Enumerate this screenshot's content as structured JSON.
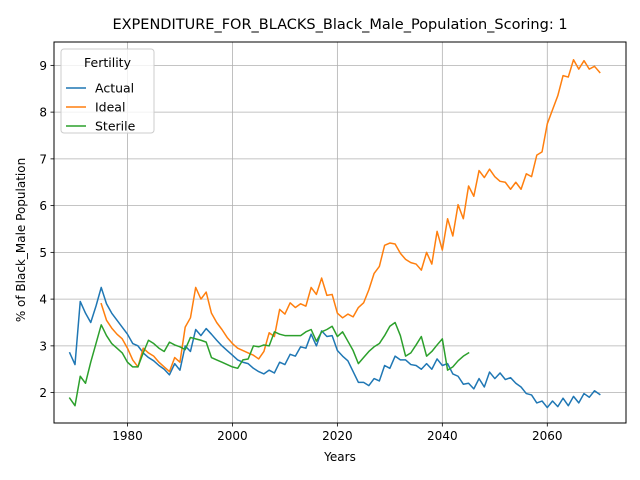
{
  "chart_data": {
    "type": "line",
    "title": "EXPENDITURE_FOR_BLACKS_Black_Male_Population_Scoring: 1",
    "xlabel": "Years",
    "ylabel": "% of Black_Male Population",
    "xlim": [
      1966,
      2075
    ],
    "ylim": [
      1.35,
      9.5
    ],
    "xticks": [
      1980,
      2000,
      2020,
      2040,
      2060
    ],
    "yticks": [
      2,
      3,
      4,
      5,
      6,
      7,
      8,
      9
    ],
    "grid": true,
    "legend": {
      "title": "Fertility",
      "placement": "top-left"
    },
    "series": [
      {
        "name": "Actual",
        "color": "#1f77b4",
        "x": [
          1969,
          1970,
          1971,
          1972,
          1973,
          1974,
          1975,
          1976,
          1977,
          1978,
          1979,
          1980,
          1981,
          1982,
          1983,
          1984,
          1985,
          1986,
          1987,
          1988,
          1989,
          1990,
          1991,
          1992,
          1993,
          1994,
          1995,
          1996,
          1997,
          1998,
          1999,
          2000,
          2001,
          2002,
          2003,
          2004,
          2005,
          2006,
          2007,
          2008,
          2009,
          2010,
          2011,
          2012,
          2013,
          2014,
          2015,
          2016,
          2017,
          2018,
          2019,
          2020,
          2021,
          2022,
          2023,
          2024,
          2025,
          2026,
          2027,
          2028,
          2029,
          2030,
          2031,
          2032,
          2033,
          2034,
          2035,
          2036,
          2037,
          2038,
          2039,
          2040,
          2041,
          2042,
          2043,
          2044,
          2045,
          2046,
          2047,
          2048,
          2049,
          2050,
          2051,
          2052,
          2053,
          2054,
          2055,
          2056,
          2057,
          2058,
          2059,
          2060,
          2061,
          2062,
          2063,
          2064,
          2065,
          2066,
          2067,
          2068,
          2069,
          2070
        ],
        "y": [
          2.85,
          2.6,
          3.95,
          3.7,
          3.5,
          3.85,
          4.25,
          3.9,
          3.7,
          3.55,
          3.4,
          3.25,
          3.05,
          3.0,
          2.85,
          2.75,
          2.68,
          2.58,
          2.5,
          2.38,
          2.62,
          2.48,
          3.0,
          2.88,
          3.35,
          3.22,
          3.37,
          3.25,
          3.12,
          3.0,
          2.9,
          2.8,
          2.7,
          2.65,
          2.62,
          2.52,
          2.45,
          2.4,
          2.48,
          2.42,
          2.65,
          2.6,
          2.82,
          2.78,
          2.98,
          2.95,
          3.25,
          3.0,
          3.32,
          3.2,
          3.22,
          2.9,
          2.78,
          2.68,
          2.45,
          2.22,
          2.22,
          2.15,
          2.3,
          2.25,
          2.58,
          2.52,
          2.78,
          2.7,
          2.7,
          2.6,
          2.58,
          2.5,
          2.62,
          2.5,
          2.72,
          2.58,
          2.62,
          2.4,
          2.35,
          2.18,
          2.2,
          2.08,
          2.3,
          2.12,
          2.44,
          2.3,
          2.42,
          2.28,
          2.32,
          2.2,
          2.12,
          1.98,
          1.95,
          1.78,
          1.82,
          1.68,
          1.82,
          1.7,
          1.88,
          1.72,
          1.92,
          1.78,
          1.98,
          1.9,
          2.04,
          1.96
        ]
      },
      {
        "name": "Ideal",
        "color": "#ff7f0e",
        "x": [
          1975,
          1976,
          1977,
          1978,
          1979,
          1980,
          1981,
          1982,
          1983,
          1984,
          1985,
          1986,
          1987,
          1988,
          1989,
          1990,
          1991,
          1992,
          1993,
          1994,
          1995,
          1996,
          1997,
          1998,
          1999,
          2000,
          2001,
          2002,
          2003,
          2004,
          2005,
          2006,
          2007,
          2008,
          2009,
          2010,
          2011,
          2012,
          2013,
          2014,
          2015,
          2016,
          2017,
          2018,
          2019,
          2020,
          2021,
          2022,
          2023,
          2024,
          2025,
          2026,
          2027,
          2028,
          2029,
          2030,
          2031,
          2032,
          2033,
          2034,
          2035,
          2036,
          2037,
          2038,
          2039,
          2040,
          2041,
          2042,
          2043,
          2044,
          2045,
          2046,
          2047,
          2048,
          2049,
          2050,
          2051,
          2052,
          2053,
          2054,
          2055,
          2056,
          2057,
          2058,
          2059,
          2060,
          2061,
          2062,
          2063,
          2064,
          2065,
          2066,
          2067,
          2068,
          2069,
          2070
        ],
        "y": [
          3.9,
          3.55,
          3.38,
          3.25,
          3.15,
          2.95,
          2.7,
          2.55,
          2.95,
          2.85,
          2.78,
          2.65,
          2.55,
          2.45,
          2.75,
          2.65,
          3.4,
          3.6,
          4.25,
          4.0,
          4.15,
          3.7,
          3.5,
          3.35,
          3.18,
          3.05,
          2.95,
          2.9,
          2.85,
          2.8,
          2.72,
          2.88,
          3.28,
          3.2,
          3.78,
          3.68,
          3.92,
          3.82,
          3.9,
          3.85,
          4.25,
          4.1,
          4.45,
          4.08,
          4.1,
          3.7,
          3.6,
          3.68,
          3.62,
          3.82,
          3.92,
          4.2,
          4.55,
          4.7,
          5.15,
          5.2,
          5.18,
          4.98,
          4.85,
          4.78,
          4.75,
          4.62,
          5.0,
          4.75,
          5.45,
          5.05,
          5.72,
          5.35,
          6.02,
          5.72,
          6.42,
          6.2,
          6.75,
          6.6,
          6.78,
          6.62,
          6.52,
          6.5,
          6.35,
          6.5,
          6.35,
          6.68,
          6.62,
          7.08,
          7.15,
          7.75,
          8.05,
          8.35,
          8.78,
          8.75,
          9.12,
          8.92,
          9.1,
          8.92,
          8.98,
          8.85
        ]
      },
      {
        "name": "Sterile",
        "color": "#2ca02c",
        "x": [
          1969,
          1970,
          1971,
          1972,
          1973,
          1974,
          1975,
          1976,
          1977,
          1978,
          1979,
          1980,
          1981,
          1982,
          1983,
          1984,
          1985,
          1986,
          1987,
          1988,
          1989,
          1990,
          1991,
          1992,
          1993,
          1994,
          1995,
          1996,
          1997,
          1998,
          1999,
          2000,
          2001,
          2002,
          2003,
          2004,
          2005,
          2006,
          2007,
          2008,
          2009,
          2010,
          2011,
          2012,
          2013,
          2014,
          2015,
          2016,
          2017,
          2018,
          2019,
          2020,
          2021,
          2022,
          2023,
          2024,
          2025,
          2026,
          2027,
          2028,
          2029,
          2030,
          2031,
          2032,
          2033,
          2034,
          2035,
          2036,
          2037,
          2038,
          2039,
          2040,
          2041,
          2042,
          2043,
          2044,
          2045
        ],
        "y": [
          1.88,
          1.72,
          2.35,
          2.2,
          2.65,
          3.05,
          3.45,
          3.22,
          3.05,
          2.95,
          2.85,
          2.65,
          2.55,
          2.55,
          2.85,
          3.12,
          3.05,
          2.95,
          2.88,
          3.08,
          3.02,
          2.98,
          2.92,
          3.18,
          3.15,
          3.12,
          3.08,
          2.75,
          2.7,
          2.65,
          2.6,
          2.55,
          2.52,
          2.7,
          2.72,
          3.0,
          2.98,
          3.02,
          3.0,
          3.3,
          3.25,
          3.22,
          3.22,
          3.22,
          3.22,
          3.3,
          3.35,
          3.1,
          3.3,
          3.35,
          3.42,
          3.2,
          3.3,
          3.1,
          2.9,
          2.62,
          2.75,
          2.88,
          2.98,
          3.05,
          3.22,
          3.42,
          3.5,
          3.22,
          2.78,
          2.85,
          3.02,
          3.2,
          2.78,
          2.88,
          3.02,
          3.15,
          2.48,
          2.55,
          2.68,
          2.78,
          2.85
        ]
      }
    ]
  }
}
